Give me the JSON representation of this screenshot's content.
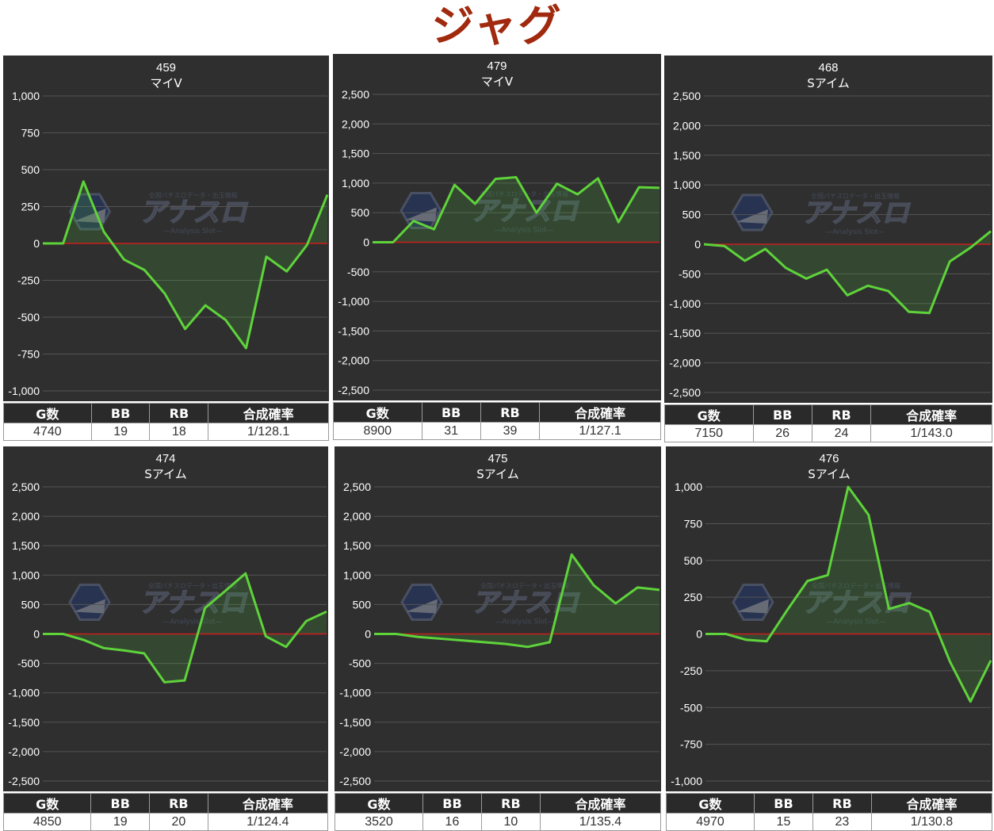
{
  "page": {
    "title": "ジャグ"
  },
  "table_headers": [
    "G数",
    "BB",
    "RB",
    "合成確率"
  ],
  "colors": {
    "line": "#5ed33a",
    "zero_line": "#cc1d1d",
    "background": "#2f2f2f",
    "grid": "#555555",
    "watermark": "#5a6a8a"
  },
  "watermark": {
    "logo_text": "アナスロ",
    "sub_text": "—Analysis Slot—",
    "top_text": "全国パチスロデータ・出玉情報"
  },
  "chart_data": [
    {
      "type": "area",
      "title": "459",
      "subtitle": "マイV",
      "ylim": [
        -1000,
        1000
      ],
      "yticks": [
        1000,
        750,
        500,
        250,
        0,
        -250,
        -500,
        -750,
        -1000
      ],
      "ytick_labels": [
        "1,000",
        "750",
        "500",
        "250",
        "0",
        "-250",
        "-500",
        "-750",
        "-1,000"
      ],
      "grid": true,
      "series": [
        {
          "values": [
            0,
            0,
            420,
            80,
            -110,
            -180,
            -340,
            -580,
            -420,
            -520,
            -710,
            -90,
            -190,
            -10,
            330
          ]
        }
      ],
      "stats": {
        "games": "4740",
        "bb": "19",
        "rb": "18",
        "prob": "1/128.1"
      }
    },
    {
      "type": "area",
      "title": "479",
      "subtitle": "マイV",
      "ylim": [
        -2500,
        2500
      ],
      "yticks": [
        2500,
        2000,
        1500,
        1000,
        500,
        0,
        -500,
        -1000,
        -1500,
        -2000,
        -2500
      ],
      "ytick_labels": [
        "2,500",
        "2,000",
        "1,500",
        "1,000",
        "500",
        "0",
        "-500",
        "-1,000",
        "-1,500",
        "-2,000",
        "-2,500"
      ],
      "grid": true,
      "series": [
        {
          "values": [
            0,
            0,
            360,
            220,
            970,
            650,
            1070,
            1100,
            500,
            990,
            810,
            1080,
            340,
            930,
            920
          ]
        }
      ],
      "stats": {
        "games": "8900",
        "bb": "31",
        "rb": "39",
        "prob": "1/127.1"
      }
    },
    {
      "type": "area",
      "title": "468",
      "subtitle": "Sアイム",
      "ylim": [
        -2500,
        2500
      ],
      "yticks": [
        2500,
        2000,
        1500,
        1000,
        500,
        0,
        -500,
        -1000,
        -1500,
        -2000,
        -2500
      ],
      "ytick_labels": [
        "2,500",
        "2,000",
        "1,500",
        "1,000",
        "500",
        "0",
        "-500",
        "-1,000",
        "-1,500",
        "-2,000",
        "-2,500"
      ],
      "grid": true,
      "series": [
        {
          "values": [
            0,
            -30,
            -280,
            -80,
            -400,
            -580,
            -430,
            -860,
            -700,
            -790,
            -1140,
            -1160,
            -290,
            -60,
            220
          ]
        }
      ],
      "stats": {
        "games": "7150",
        "bb": "26",
        "rb": "24",
        "prob": "1/143.0"
      }
    },
    {
      "type": "area",
      "title": "474",
      "subtitle": "Sアイム",
      "ylim": [
        -2500,
        2500
      ],
      "yticks": [
        2500,
        2000,
        1500,
        1000,
        500,
        0,
        -500,
        -1000,
        -1500,
        -2000,
        -2500
      ],
      "ytick_labels": [
        "2,500",
        "2,000",
        "1,500",
        "1,000",
        "500",
        "0",
        "-500",
        "-1,000",
        "-1,500",
        "-2,000",
        "-2,500"
      ],
      "grid": true,
      "series": [
        {
          "values": [
            0,
            0,
            -100,
            -240,
            -280,
            -330,
            -820,
            -790,
            440,
            730,
            1030,
            -40,
            -220,
            220,
            380
          ]
        }
      ],
      "stats": {
        "games": "4850",
        "bb": "19",
        "rb": "20",
        "prob": "1/124.4"
      }
    },
    {
      "type": "area",
      "title": "475",
      "subtitle": "Sアイム",
      "ylim": [
        -2500,
        2500
      ],
      "yticks": [
        2500,
        2000,
        1500,
        1000,
        500,
        0,
        -500,
        -1000,
        -1500,
        -2000,
        -2500
      ],
      "ytick_labels": [
        "2,500",
        "2,000",
        "1,500",
        "1,000",
        "500",
        "0",
        "-500",
        "-1,000",
        "-1,500",
        "-2,000",
        "-2,500"
      ],
      "grid": true,
      "series": [
        {
          "values": [
            0,
            0,
            -50,
            -80,
            -110,
            -140,
            -170,
            -220,
            -140,
            1350,
            830,
            520,
            790,
            750
          ]
        }
      ],
      "stats": {
        "games": "3520",
        "bb": "16",
        "rb": "10",
        "prob": "1/135.4"
      }
    },
    {
      "type": "area",
      "title": "476",
      "subtitle": "Sアイム",
      "ylim": [
        -1000,
        1000
      ],
      "yticks": [
        1000,
        750,
        500,
        250,
        0,
        -250,
        -500,
        -750,
        -1000
      ],
      "ytick_labels": [
        "1,000",
        "750",
        "500",
        "250",
        "0",
        "-250",
        "-500",
        "-750",
        "-1,000"
      ],
      "grid": true,
      "series": [
        {
          "values": [
            0,
            0,
            -40,
            -50,
            160,
            360,
            400,
            1000,
            810,
            170,
            210,
            150,
            -190,
            -460,
            -180
          ]
        }
      ],
      "stats": {
        "games": "4970",
        "bb": "15",
        "rb": "23",
        "prob": "1/130.8"
      }
    }
  ]
}
